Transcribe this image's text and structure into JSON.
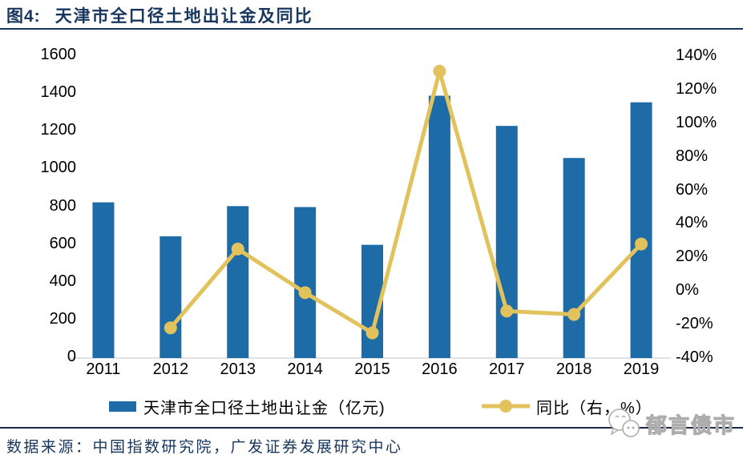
{
  "header": {
    "figure_label": "图4:",
    "title": "天津市全口径土地出让金及同比"
  },
  "footer": {
    "source": "数据来源：中国指数研究院，广发证券发展研究中心"
  },
  "watermark": {
    "text": "郁言债市"
  },
  "colors": {
    "title_navy": "#17365D",
    "bar_blue": "#1D6BA7",
    "line_yellow": "#E2C25D",
    "axis_line_gray": "#D9D9D9",
    "watermark_gray": "#ADADAD"
  },
  "chart_data": {
    "type": "bar+line",
    "title": "天津市全口径土地出让金及同比",
    "categories": [
      "2011",
      "2012",
      "2013",
      "2014",
      "2015",
      "2016",
      "2017",
      "2018",
      "2019"
    ],
    "series": [
      {
        "name": "天津市全口径土地出让金（亿元)",
        "chart_type": "bar",
        "y_axis": "left",
        "color": "#1D6BA7",
        "values": [
          825,
          645,
          805,
          800,
          600,
          1390,
          1230,
          1060,
          1355
        ]
      },
      {
        "name": "同比（右，%）",
        "chart_type": "line",
        "y_axis": "right",
        "color": "#E2C25D",
        "values": [
          null,
          -22,
          25,
          -1,
          -25,
          131,
          -12,
          -14,
          28
        ]
      }
    ],
    "left_axis": {
      "min": 0,
      "max": 1600,
      "step": 200,
      "tick_labels": [
        "0",
        "200",
        "400",
        "600",
        "800",
        "1000",
        "1200",
        "1400",
        "1600"
      ]
    },
    "right_axis": {
      "min": -40,
      "max": 140,
      "step": 20,
      "tick_labels": [
        "-40%",
        "-20%",
        "0%",
        "20%",
        "40%",
        "60%",
        "80%",
        "100%",
        "120%",
        "140%"
      ]
    },
    "grid": false,
    "legend_position": "bottom"
  }
}
